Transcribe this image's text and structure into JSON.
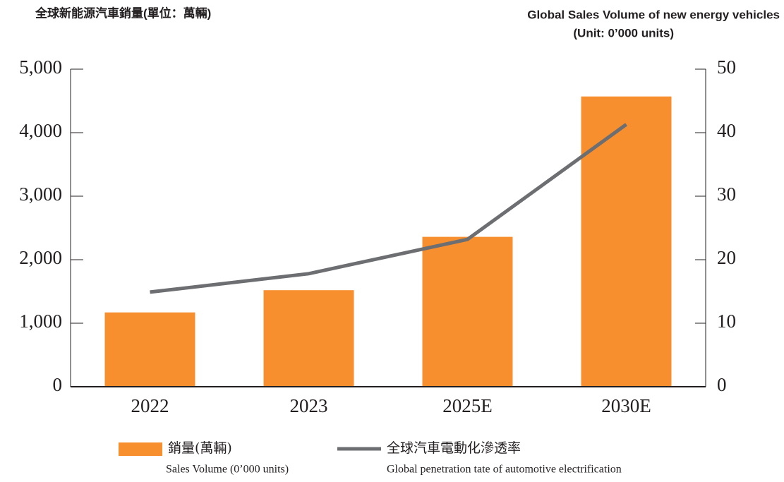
{
  "chart_data": {
    "type": "bar_line",
    "title": "全球新能源汽車銷量(單位：萬輛)",
    "title_en": [
      "Global Sales Volume of new energy vehicles",
      "(Unit: 0’000 units)"
    ],
    "categories": [
      "2022",
      "2023",
      "2025E",
      "2030E"
    ],
    "series": [
      {
        "name": "銷量(萬輛)",
        "name_en": "Sales Volume (0’000 units)",
        "type": "bar",
        "color": "#f78f2e",
        "values": [
          1170,
          1520,
          2360,
          4570
        ]
      },
      {
        "name": "全球汽車電動化滲透率",
        "name_en": "Global penetration tate of automotive electrification",
        "type": "line",
        "axis": "y2",
        "color": "#6d6e71",
        "values": [
          14.9,
          17.8,
          23.2,
          41.3
        ]
      }
    ],
    "ylim": [
      0,
      5000
    ],
    "yticks": [
      0,
      {
        "value": 1000,
        "label": "1,000"
      },
      {
        "value": 2000,
        "label": "2,000"
      },
      {
        "value": 3000,
        "label": "3,000"
      },
      {
        "value": 4000,
        "label": "4,000"
      },
      {
        "value": 5000,
        "label": "5,000"
      }
    ],
    "y2lim": [
      0,
      50
    ],
    "y2ticks": [
      0,
      10,
      20,
      30,
      40,
      50
    ],
    "grid": false
  }
}
